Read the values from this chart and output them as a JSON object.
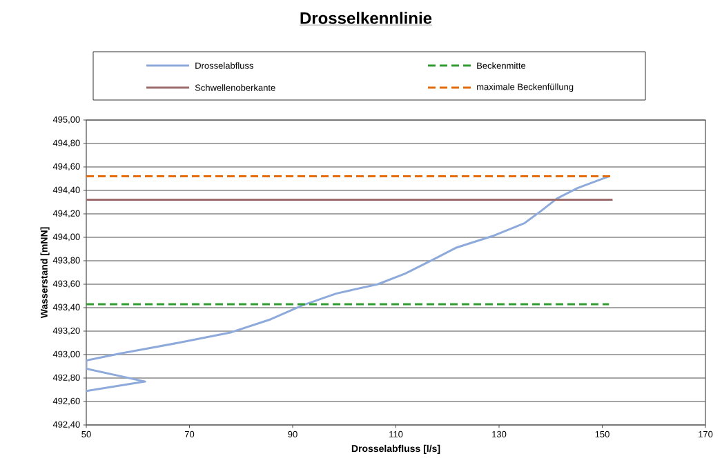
{
  "chart_data": {
    "type": "line",
    "title": "Drosselkennlinie",
    "xlabel": "Drosselabfluss [l/s]",
    "ylabel": "Wasserstand [mNN]",
    "series": [
      {
        "name": "Drosselabfluss",
        "color": "#8eaadb",
        "line_style": "solid",
        "x": [
          50,
          61.4,
          50,
          50,
          56.7,
          67.8,
          78.1,
          85.7,
          91.9,
          98.4,
          106.5,
          111.8,
          117.2,
          121.6,
          128.7,
          134.9,
          138.0,
          141.2,
          145.2,
          151.3
        ],
        "values": [
          492.69,
          492.77,
          492.88,
          492.95,
          493.01,
          493.1,
          493.19,
          493.3,
          493.42,
          493.52,
          493.6,
          493.69,
          493.81,
          493.91,
          494.01,
          494.12,
          494.22,
          494.33,
          494.42,
          494.52
        ]
      },
      {
        "name": "Beckenmitte",
        "color": "#2e9e2e",
        "line_style": "dashed",
        "x": [
          50,
          151.3
        ],
        "values": [
          493.43,
          493.43
        ]
      },
      {
        "name": "Schwellenoberkante",
        "color": "#9e6b6b",
        "line_style": "solid",
        "x": [
          50,
          152
        ],
        "values": [
          494.32,
          494.32
        ]
      },
      {
        "name": "maximale Beckenfüllung",
        "color": "#e46c0a",
        "line_style": "dashed",
        "x": [
          50,
          152
        ],
        "values": [
          494.52,
          494.52
        ]
      }
    ],
    "xlim": [
      50,
      170
    ],
    "xticks": [
      50,
      70,
      90,
      110,
      130,
      150,
      170
    ],
    "ylim": [
      492.4,
      495.0
    ],
    "yticks": [
      {
        "value": 492.4,
        "label": "492,40"
      },
      {
        "value": 492.6,
        "label": "492,60"
      },
      {
        "value": 492.8,
        "label": "492,80"
      },
      {
        "value": 493.0,
        "label": "493,00"
      },
      {
        "value": 493.2,
        "label": "493,20"
      },
      {
        "value": 493.4,
        "label": "493,40"
      },
      {
        "value": 493.6,
        "label": "493,60"
      },
      {
        "value": 493.8,
        "label": "493,80"
      },
      {
        "value": 494.0,
        "label": "494,00"
      },
      {
        "value": 494.2,
        "label": "494,20"
      },
      {
        "value": 494.4,
        "label": "494,40"
      },
      {
        "value": 494.6,
        "label": "494,60"
      },
      {
        "value": 494.8,
        "label": "494,80"
      },
      {
        "value": 495.0,
        "label": "495,00"
      }
    ],
    "grid": "y",
    "legend": "top"
  }
}
